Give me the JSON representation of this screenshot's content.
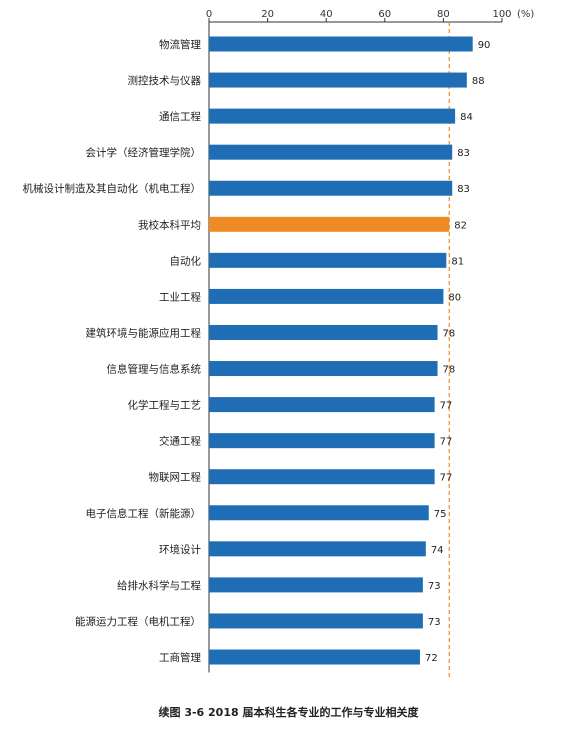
{
  "caption": "续图 3-6  2018 届本科生各专业的工作与专业相关度",
  "chart_data": {
    "type": "bar",
    "orientation": "horizontal",
    "categories": [
      "物流管理",
      "测控技术与仪器",
      "通信工程",
      "会计学（经济管理学院）",
      "机械设计制造及其自动化（机电工程）",
      "我校本科平均",
      "自动化",
      "工业工程",
      "建筑环境与能源应用工程",
      "信息管理与信息系统",
      "化学工程与工艺",
      "交通工程",
      "物联网工程",
      "电子信息工程（新能源）",
      "环境设计",
      "给排水科学与工程",
      "能源运力工程（电机工程）",
      "工商管理"
    ],
    "values": [
      90,
      88,
      84,
      83,
      83,
      82,
      81,
      80,
      78,
      78,
      77,
      77,
      77,
      75,
      74,
      73,
      73,
      72
    ],
    "highlight_index": 5,
    "reference_line": 82,
    "xlim": [
      0,
      100
    ],
    "ticks": [
      0,
      20,
      40,
      60,
      80,
      100
    ],
    "unit_label": "(%)",
    "axis_position": "top",
    "grid": false,
    "colors": {
      "bar": "#1f6eb5",
      "highlight": "#f08a24",
      "reference": "#f08a24",
      "axis": "#333333"
    }
  }
}
